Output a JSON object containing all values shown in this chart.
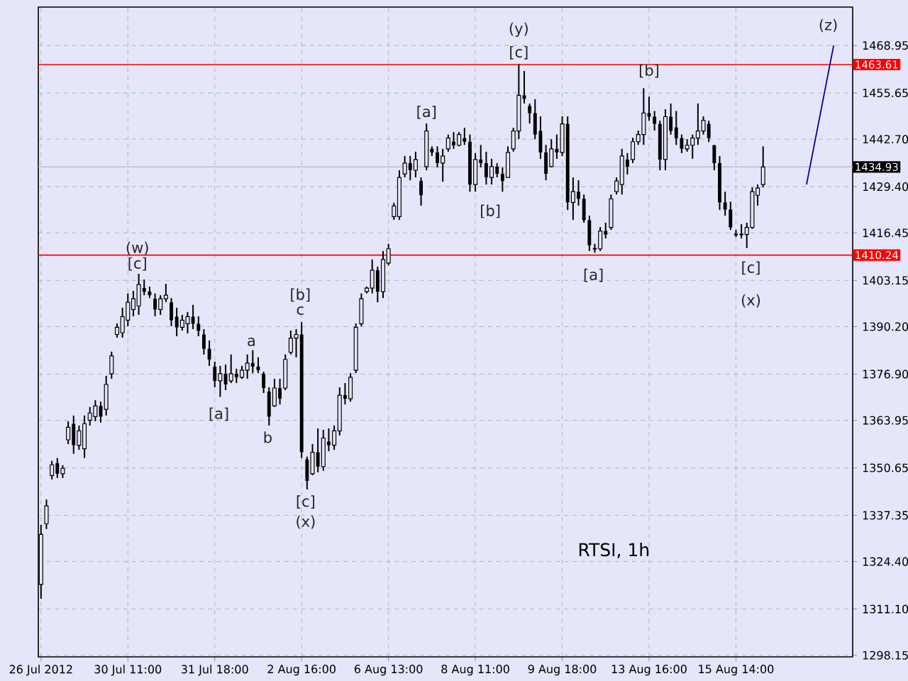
{
  "chart_data": {
    "type": "candlestick",
    "color": "#000000",
    "categories": [
      "26 Jul 2012",
      null,
      null,
      null,
      null,
      null,
      null,
      null,
      null,
      null,
      null,
      null,
      null,
      null,
      null,
      null,
      "30 Jul 11:00",
      null,
      null,
      null,
      null,
      null,
      null,
      null,
      null,
      null,
      null,
      null,
      null,
      null,
      null,
      null,
      "31 Jul 18:00",
      null,
      null,
      null,
      null,
      null,
      null,
      null,
      null,
      null,
      null,
      null,
      null,
      null,
      null,
      null,
      "2 Aug 16:00",
      null,
      null,
      null,
      null,
      null,
      null,
      null,
      null,
      null,
      null,
      null,
      null,
      null,
      null,
      null,
      "6 Aug 13:00",
      null,
      null,
      null,
      null,
      null,
      null,
      null,
      null,
      null,
      null,
      null,
      null,
      null,
      null,
      null,
      "8 Aug 11:00",
      null,
      null,
      null,
      null,
      null,
      null,
      null,
      null,
      null,
      null,
      null,
      null,
      null,
      null,
      null,
      "9 Aug 18:00",
      null,
      null,
      null,
      null,
      null,
      null,
      null,
      null,
      null,
      null,
      null,
      null,
      null,
      null,
      null,
      "13 Aug 16:00",
      null,
      null,
      null,
      null,
      null,
      null,
      null,
      null,
      null,
      null,
      null,
      null,
      null,
      null,
      null,
      "15 Aug 14:00",
      null,
      null,
      null,
      null,
      null,
      null,
      null,
      null,
      null,
      null,
      null,
      null,
      null,
      null,
      null,
      null,
      null,
      null,
      null,
      null,
      null
    ],
    "ohlc": [
      [
        1318,
        1334.7,
        1314.0,
        1332
      ],
      [
        1335,
        1341.8,
        1333.5,
        1340
      ],
      [
        1348.5,
        1352.6,
        1347.4,
        1351.5
      ],
      [
        1352,
        1353.4,
        1347.8,
        1349
      ],
      [
        1349,
        1351.4,
        1347.8,
        1350.5
      ],
      [
        1358.5,
        1363.7,
        1357.3,
        1362
      ],
      [
        1363,
        1365.3,
        1354.6,
        1357
      ],
      [
        1357,
        1362.5,
        1355.7,
        1361
      ],
      [
        1356,
        1365.3,
        1353.4,
        1363
      ],
      [
        1364,
        1367.7,
        1362.5,
        1366
      ],
      [
        1365,
        1369.6,
        1363.7,
        1368
      ],
      [
        1368,
        1369.2,
        1363.3,
        1365
      ],
      [
        1367,
        1376.4,
        1365.3,
        1374
      ],
      [
        1377,
        1383.2,
        1375.6,
        1382
      ],
      [
        1388,
        1391.1,
        1387.1,
        1390
      ],
      [
        1388.5,
        1395.5,
        1387.1,
        1393
      ],
      [
        1392,
        1399.5,
        1390.3,
        1397
      ],
      [
        1395,
        1400.2,
        1393.1,
        1398
      ],
      [
        1396,
        1405.0,
        1393.5,
        1402
      ],
      [
        1401,
        1403.4,
        1399.0,
        1400
      ],
      [
        1400,
        1401.4,
        1398.2,
        1399
      ],
      [
        1398,
        1399.5,
        1393.1,
        1395
      ],
      [
        1395,
        1399.0,
        1393.5,
        1398
      ],
      [
        1398,
        1402.2,
        1397.1,
        1399
      ],
      [
        1397,
        1398.2,
        1390.3,
        1392
      ],
      [
        1393,
        1395.5,
        1387.5,
        1390
      ],
      [
        1390,
        1393.5,
        1389.1,
        1392
      ],
      [
        1391,
        1394.3,
        1388.3,
        1393
      ],
      [
        1393,
        1396.3,
        1389.5,
        1391
      ],
      [
        1391,
        1393.1,
        1387.5,
        1389
      ],
      [
        1388,
        1389.5,
        1382.4,
        1384
      ],
      [
        1384,
        1386.3,
        1379.2,
        1381
      ],
      [
        1379,
        1380.4,
        1373.2,
        1375
      ],
      [
        1375,
        1379.2,
        1370.5,
        1377
      ],
      [
        1377,
        1379.6,
        1372.4,
        1374
      ],
      [
        1375,
        1382.4,
        1374.4,
        1377
      ],
      [
        1377,
        1378.4,
        1374.4,
        1376
      ],
      [
        1376,
        1379.2,
        1375.6,
        1378
      ],
      [
        1378,
        1382.4,
        1375.6,
        1380
      ],
      [
        1380,
        1383.6,
        1377.2,
        1379
      ],
      [
        1379,
        1381.6,
        1377.2,
        1378
      ],
      [
        1377,
        1377.6,
        1371.6,
        1373
      ],
      [
        1372,
        1373.2,
        1362.5,
        1365
      ],
      [
        1368,
        1375.6,
        1367.7,
        1373
      ],
      [
        1373,
        1375.6,
        1368.4,
        1370
      ],
      [
        1373,
        1382.4,
        1372.4,
        1381
      ],
      [
        1383,
        1389.1,
        1382.4,
        1387
      ],
      [
        1387,
        1389.5,
        1381.6,
        1388
      ],
      [
        1388,
        1391.5,
        1353.4,
        1355
      ],
      [
        1353,
        1353.8,
        1344.6,
        1347
      ],
      [
        1349,
        1357.3,
        1348.6,
        1355
      ],
      [
        1355,
        1361.7,
        1349.4,
        1351
      ],
      [
        1351,
        1361.3,
        1349.8,
        1359
      ],
      [
        1358,
        1361.7,
        1355.3,
        1357
      ],
      [
        1357,
        1362.5,
        1355.7,
        1361
      ],
      [
        1361,
        1373.2,
        1359.7,
        1371
      ],
      [
        1371,
        1374.4,
        1368.4,
        1370
      ],
      [
        1370,
        1377.2,
        1369.2,
        1376
      ],
      [
        1378,
        1391.1,
        1377.2,
        1390
      ],
      [
        1391,
        1399.5,
        1390.3,
        1398
      ],
      [
        1400,
        1401.4,
        1399.5,
        1401
      ],
      [
        1401,
        1409.0,
        1399.5,
        1406
      ],
      [
        1406,
        1407.0,
        1397.0,
        1400
      ],
      [
        1400,
        1411.4,
        1398.2,
        1409
      ],
      [
        1408,
        1413.4,
        1407.4,
        1412
      ],
      [
        1421,
        1424.9,
        1420.1,
        1424
      ],
      [
        1421,
        1434.0,
        1420.1,
        1432
      ],
      [
        1433,
        1438.0,
        1432.0,
        1436
      ],
      [
        1436,
        1438.0,
        1431.2,
        1434
      ],
      [
        1434,
        1439.2,
        1432.0,
        1437
      ],
      [
        1431,
        1432.0,
        1424.1,
        1427
      ],
      [
        1435,
        1447.1,
        1434.0,
        1445
      ],
      [
        1440,
        1440.7,
        1438.0,
        1439
      ],
      [
        1439,
        1440.7,
        1434.8,
        1436
      ],
      [
        1436,
        1440.0,
        1430.8,
        1438
      ],
      [
        1440,
        1444.0,
        1439.2,
        1443
      ],
      [
        1442,
        1444.7,
        1440.0,
        1441
      ],
      [
        1441,
        1444.7,
        1440.7,
        1444
      ],
      [
        1443,
        1445.9,
        1441.1,
        1442
      ],
      [
        1442,
        1444.0,
        1428.0,
        1430
      ],
      [
        1430,
        1438.8,
        1428.0,
        1437
      ],
      [
        1437,
        1441.1,
        1434.8,
        1436
      ],
      [
        1436,
        1439.2,
        1430.0,
        1432
      ],
      [
        1432,
        1437.2,
        1430.0,
        1435
      ],
      [
        1435,
        1436.0,
        1432.0,
        1433
      ],
      [
        1433,
        1434.8,
        1428.0,
        1431
      ],
      [
        1432,
        1440.7,
        1432.0,
        1439
      ],
      [
        1440,
        1445.9,
        1439.2,
        1445
      ],
      [
        1445,
        1463.8,
        1442.7,
        1455
      ],
      [
        1455,
        1461.8,
        1452.7,
        1454
      ],
      [
        1452,
        1452.7,
        1447.1,
        1450
      ],
      [
        1450,
        1453.9,
        1442.7,
        1444
      ],
      [
        1445,
        1449.1,
        1437.2,
        1439
      ],
      [
        1439,
        1441.1,
        1431.2,
        1433
      ],
      [
        1435,
        1442.7,
        1434.8,
        1440
      ],
      [
        1440,
        1444.0,
        1437.2,
        1439
      ],
      [
        1439,
        1449.1,
        1438.0,
        1447
      ],
      [
        1447,
        1449.1,
        1422.9,
        1425
      ],
      [
        1425,
        1432.0,
        1420.1,
        1428
      ],
      [
        1428,
        1431.2,
        1424.1,
        1426
      ],
      [
        1426,
        1427.2,
        1419.3,
        1420
      ],
      [
        1420,
        1421.3,
        1411.4,
        1413
      ],
      [
        1412,
        1413.4,
        1410.9,
        1412
      ],
      [
        1412,
        1418.1,
        1411.4,
        1417
      ],
      [
        1417,
        1419.3,
        1414.9,
        1416
      ],
      [
        1418,
        1427.2,
        1417.3,
        1426
      ],
      [
        1428,
        1432.0,
        1427.2,
        1431
      ],
      [
        1430,
        1440.0,
        1427.2,
        1438
      ],
      [
        1437,
        1438.8,
        1432.8,
        1435
      ],
      [
        1437,
        1443.1,
        1436.0,
        1442
      ],
      [
        1442,
        1445.1,
        1441.1,
        1444
      ],
      [
        1444,
        1457.0,
        1441.1,
        1450
      ],
      [
        1450,
        1454.6,
        1447.9,
        1449
      ],
      [
        1449,
        1450.6,
        1445.1,
        1447
      ],
      [
        1447,
        1447.9,
        1434.0,
        1437
      ],
      [
        1437,
        1451.1,
        1434.0,
        1449
      ],
      [
        1449,
        1452.7,
        1444.0,
        1445
      ],
      [
        1446,
        1450.6,
        1441.1,
        1443
      ],
      [
        1443,
        1444.0,
        1438.8,
        1440
      ],
      [
        1440,
        1442.7,
        1439.2,
        1441
      ],
      [
        1441,
        1444.0,
        1437.2,
        1443
      ],
      [
        1443,
        1452.7,
        1441.1,
        1445
      ],
      [
        1445,
        1449.1,
        1444.0,
        1448
      ],
      [
        1447,
        1447.9,
        1441.9,
        1443
      ],
      [
        1441,
        1441.1,
        1434.0,
        1436
      ],
      [
        1436,
        1438.0,
        1422.9,
        1425
      ],
      [
        1425,
        1428.0,
        1421.3,
        1423
      ],
      [
        1423,
        1425.2,
        1417.3,
        1418
      ],
      [
        1416,
        1417.3,
        1415.3,
        1416
      ],
      [
        1416,
        1418.9,
        1414.9,
        1416
      ],
      [
        1416,
        1419.3,
        1412.2,
        1418
      ],
      [
        1418,
        1429.2,
        1417.6,
        1428
      ],
      [
        1427,
        1430.0,
        1424.1,
        1429
      ],
      [
        1430,
        1440.7,
        1429.2,
        1434.9
      ],
      null,
      null,
      null,
      null,
      null,
      null,
      null,
      null,
      null,
      null,
      null,
      null,
      null,
      null,
      null,
      null
    ],
    "series": [
      {
        "type": "line",
        "color": "#000099",
        "values": [
          null,
          null,
          null,
          null,
          null,
          null,
          null,
          null,
          null,
          null,
          null,
          null,
          null,
          null,
          null,
          null,
          null,
          null,
          null,
          null,
          null,
          null,
          null,
          null,
          null,
          null,
          null,
          null,
          null,
          null,
          null,
          null,
          null,
          null,
          null,
          null,
          null,
          null,
          null,
          null,
          null,
          null,
          null,
          null,
          null,
          null,
          null,
          null,
          null,
          null,
          null,
          null,
          null,
          null,
          null,
          null,
          null,
          null,
          null,
          null,
          null,
          null,
          null,
          null,
          null,
          null,
          null,
          null,
          null,
          null,
          null,
          null,
          null,
          null,
          null,
          null,
          null,
          null,
          null,
          null,
          null,
          null,
          null,
          null,
          null,
          null,
          null,
          null,
          null,
          null,
          null,
          null,
          null,
          null,
          null,
          null,
          null,
          null,
          null,
          null,
          null,
          null,
          null,
          null,
          null,
          null,
          null,
          null,
          null,
          null,
          null,
          null,
          null,
          null,
          null,
          null,
          null,
          null,
          null,
          null,
          null,
          null,
          null,
          null,
          null,
          null,
          null,
          null,
          null,
          null,
          null,
          null,
          null,
          null,
          null,
          null,
          null,
          null,
          null,
          null,
          null,
          1430.0,
          null,
          null,
          null,
          null,
          1469.0,
          null,
          null,
          null
        ]
      }
    ],
    "ylim": [
      1297.7,
      1479.7
    ],
    "yticks": [
      1298.15,
      {
        "value": 1311.1,
        "label": "1311.10"
      },
      {
        "value": 1324.4,
        "label": "1324.40"
      },
      1337.35,
      1350.65,
      1363.95,
      {
        "value": 1376.9,
        "label": "1376.90"
      },
      {
        "value": 1390.2,
        "label": "1390.20"
      },
      1403.15,
      1416.45,
      {
        "value": 1429.4,
        "label": "1429.40"
      },
      {
        "value": 1442.7,
        "label": "1442.70"
      },
      1455.65,
      1468.95
    ],
    "grid": true,
    "ref_lines": [
      {
        "axis": "y",
        "value": 1463.61,
        "label": "1463.61",
        "color": "#ff0000"
      },
      {
        "axis": "y",
        "value": 1410.24,
        "label": "1410.24",
        "color": "#ff0000"
      },
      {
        "axis": "y",
        "value": 1434.93,
        "label": "1434.93",
        "color": "#c0c0c0"
      }
    ],
    "annotations": [
      "(w)",
      "[c]",
      "[a]",
      "a",
      {
        "text": "b",
        "y": 1362.5
      },
      "[b]",
      "c",
      {
        "text": "[c]",
        "y": 1344.6
      },
      "(x)",
      {
        "text": "[a]",
        "y": 1447.1
      },
      "[b]",
      "(y)",
      {
        "text": "[c]",
        "y": 1463.8
      },
      "[a]",
      "[b]",
      "[c]",
      "(x)",
      "(z)",
      "RTSI, 1h"
    ]
  }
}
